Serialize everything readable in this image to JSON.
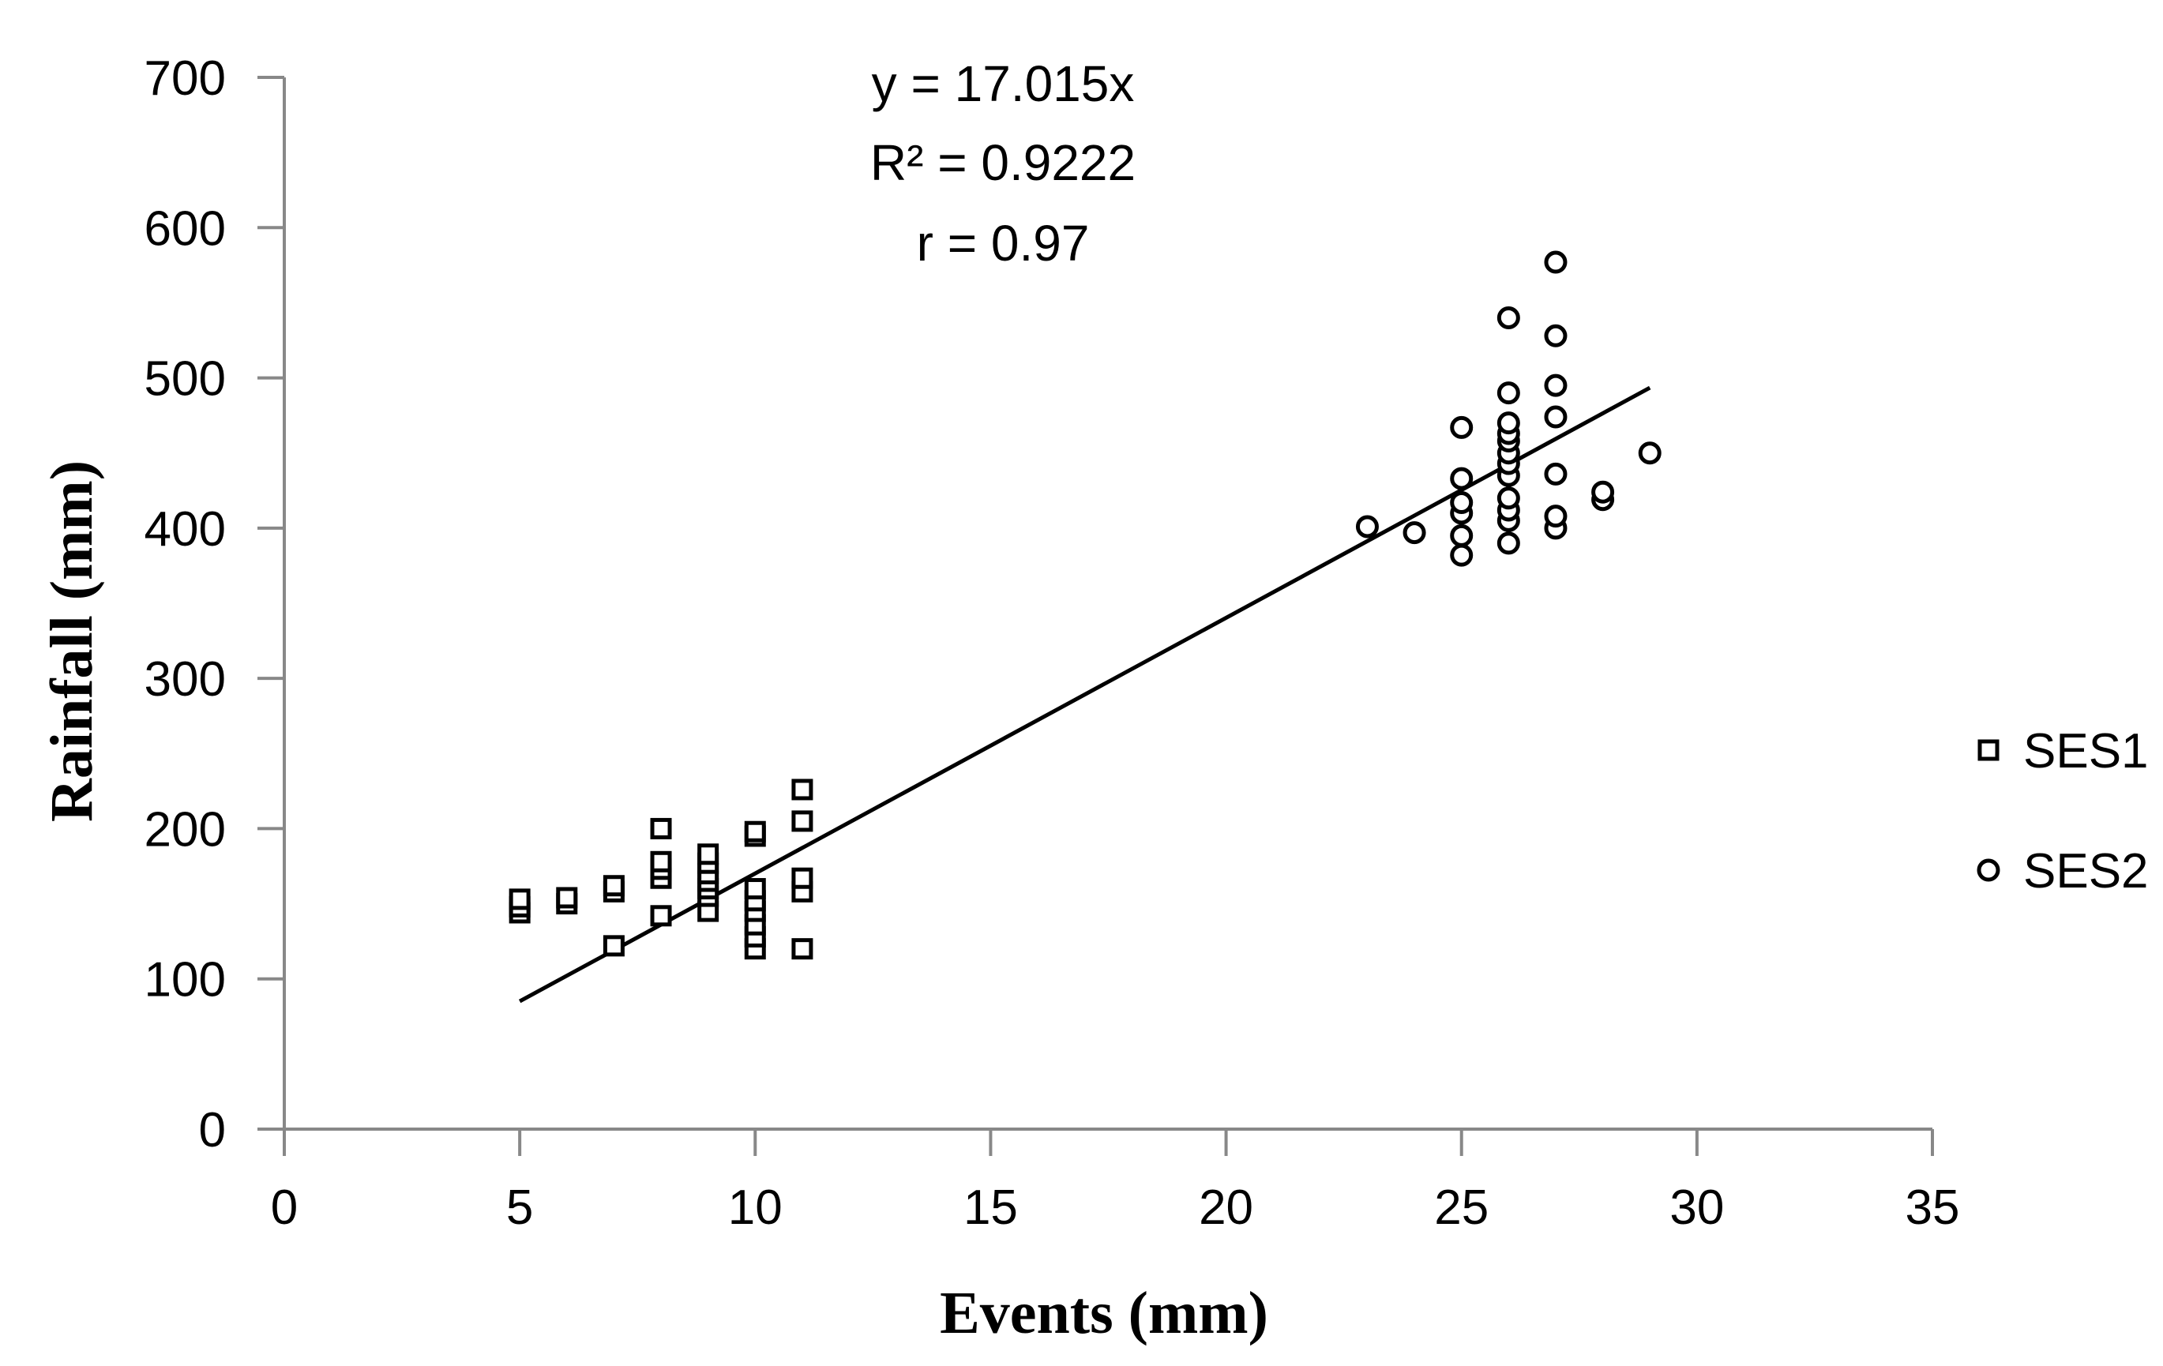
{
  "chart_data": {
    "type": "scatter",
    "xlabel": "Events (mm)",
    "ylabel": "Rainfall (mm)",
    "xlim": [
      0,
      35
    ],
    "ylim": [
      0,
      700
    ],
    "xticks": [
      0,
      5,
      10,
      15,
      20,
      25,
      30,
      35
    ],
    "yticks": [
      0,
      100,
      200,
      300,
      400,
      500,
      600,
      700
    ],
    "grid": false,
    "legend_position": "right",
    "annotation": {
      "equation": "y = 17.015x",
      "r_squared": "R² = 0.9222",
      "r": "r = 0.97"
    },
    "trendline": {
      "slope": 17.015,
      "x_start": 5,
      "x_end": 29
    },
    "series": [
      {
        "name": "SES1",
        "marker": "square",
        "points": [
          [
            5,
            144
          ],
          [
            5,
            148
          ],
          [
            5,
            153
          ],
          [
            6,
            150
          ],
          [
            6,
            154
          ],
          [
            7,
            122
          ],
          [
            7,
            158
          ],
          [
            7,
            162
          ],
          [
            8,
            142
          ],
          [
            8,
            167
          ],
          [
            8,
            173
          ],
          [
            8,
            178
          ],
          [
            8,
            200
          ],
          [
            9,
            145
          ],
          [
            9,
            155
          ],
          [
            9,
            160
          ],
          [
            9,
            165
          ],
          [
            9,
            170
          ],
          [
            9,
            177
          ],
          [
            9,
            183
          ],
          [
            10,
            120
          ],
          [
            10,
            128
          ],
          [
            10,
            136
          ],
          [
            10,
            145
          ],
          [
            10,
            152
          ],
          [
            10,
            160
          ],
          [
            10,
            195
          ],
          [
            10,
            198
          ],
          [
            11,
            120
          ],
          [
            11,
            158
          ],
          [
            11,
            167
          ],
          [
            11,
            205
          ],
          [
            11,
            226
          ]
        ]
      },
      {
        "name": "SES2",
        "marker": "circle",
        "points": [
          [
            23,
            401
          ],
          [
            24,
            397
          ],
          [
            25,
            382
          ],
          [
            25,
            395
          ],
          [
            25,
            410
          ],
          [
            25,
            417
          ],
          [
            25,
            433
          ],
          [
            25,
            467
          ],
          [
            26,
            390
          ],
          [
            26,
            405
          ],
          [
            26,
            412
          ],
          [
            26,
            420
          ],
          [
            26,
            435
          ],
          [
            26,
            443
          ],
          [
            26,
            450
          ],
          [
            26,
            458
          ],
          [
            26,
            463
          ],
          [
            26,
            470
          ],
          [
            26,
            490
          ],
          [
            26,
            540
          ],
          [
            27,
            400
          ],
          [
            27,
            408
          ],
          [
            27,
            436
          ],
          [
            27,
            474
          ],
          [
            27,
            495
          ],
          [
            27,
            528
          ],
          [
            27,
            577
          ],
          [
            28,
            419
          ],
          [
            28,
            424
          ],
          [
            29,
            450
          ]
        ]
      }
    ]
  }
}
